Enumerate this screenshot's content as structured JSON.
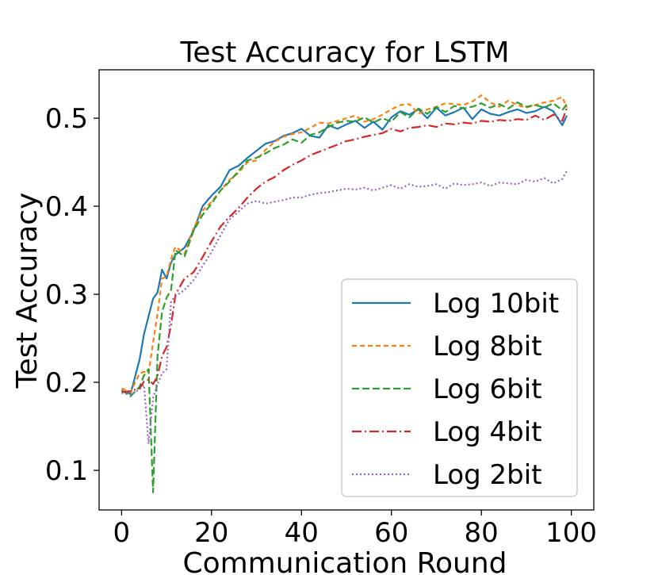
{
  "chart_data": {
    "type": "line",
    "title": "Test Accuracy for LSTM",
    "xlabel": "Communication Round",
    "ylabel": "Test Accuracy",
    "xlim": [
      -5,
      105
    ],
    "ylim": [
      0.055,
      0.555
    ],
    "xticks": [
      0,
      20,
      40,
      60,
      80,
      100
    ],
    "yticks": [
      0.1,
      0.2,
      0.3,
      0.4,
      0.5
    ],
    "xtick_labels": [
      "0",
      "20",
      "40",
      "60",
      "80",
      "100"
    ],
    "ytick_labels": [
      "0.1",
      "0.2",
      "0.3",
      "0.4",
      "0.5"
    ],
    "grid": false,
    "legend_position": "lower-right",
    "x": [
      0,
      2,
      4,
      5,
      6,
      7,
      8,
      9,
      10,
      11,
      12,
      14,
      16,
      18,
      20,
      22,
      24,
      26,
      28,
      30,
      32,
      34,
      36,
      38,
      40,
      42,
      44,
      46,
      48,
      50,
      52,
      54,
      56,
      58,
      60,
      62,
      64,
      66,
      68,
      70,
      72,
      74,
      76,
      78,
      80,
      82,
      84,
      86,
      88,
      90,
      92,
      94,
      96,
      98,
      99
    ],
    "series": [
      {
        "name": "Log 10bit",
        "color": "#1f77b4",
        "dash": "solid",
        "values": [
          0.19,
          0.187,
          0.226,
          0.255,
          0.275,
          0.295,
          0.302,
          0.328,
          0.318,
          0.336,
          0.345,
          0.353,
          0.372,
          0.4,
          0.412,
          0.422,
          0.441,
          0.446,
          0.455,
          0.463,
          0.471,
          0.474,
          0.48,
          0.483,
          0.488,
          0.48,
          0.478,
          0.492,
          0.488,
          0.493,
          0.497,
          0.489,
          0.496,
          0.487,
          0.501,
          0.508,
          0.504,
          0.51,
          0.5,
          0.512,
          0.503,
          0.507,
          0.512,
          0.499,
          0.51,
          0.505,
          0.503,
          0.507,
          0.51,
          0.506,
          0.508,
          0.513,
          0.508,
          0.492,
          0.503
        ]
      },
      {
        "name": "Log 8bit",
        "color": "#ff7f0e",
        "dash": "6,4",
        "values": [
          0.193,
          0.189,
          0.21,
          0.212,
          0.21,
          0.245,
          0.278,
          0.318,
          0.32,
          0.34,
          0.354,
          0.346,
          0.375,
          0.395,
          0.405,
          0.418,
          0.43,
          0.438,
          0.45,
          0.452,
          0.464,
          0.473,
          0.479,
          0.482,
          0.484,
          0.489,
          0.495,
          0.494,
          0.497,
          0.5,
          0.503,
          0.496,
          0.499,
          0.504,
          0.51,
          0.515,
          0.516,
          0.505,
          0.51,
          0.513,
          0.517,
          0.516,
          0.515,
          0.519,
          0.526,
          0.518,
          0.513,
          0.52,
          0.515,
          0.512,
          0.515,
          0.518,
          0.52,
          0.524,
          0.512
        ]
      },
      {
        "name": "Log 6bit",
        "color": "#2ca02c",
        "dash": "9,4",
        "values": [
          0.191,
          0.184,
          0.195,
          0.208,
          0.215,
          0.075,
          0.23,
          0.28,
          0.296,
          0.305,
          0.35,
          0.343,
          0.372,
          0.39,
          0.403,
          0.418,
          0.428,
          0.44,
          0.452,
          0.455,
          0.46,
          0.466,
          0.47,
          0.476,
          0.472,
          0.481,
          0.484,
          0.49,
          0.495,
          0.497,
          0.496,
          0.501,
          0.495,
          0.5,
          0.496,
          0.507,
          0.501,
          0.511,
          0.505,
          0.513,
          0.507,
          0.514,
          0.511,
          0.513,
          0.517,
          0.512,
          0.516,
          0.511,
          0.518,
          0.513,
          0.515,
          0.512,
          0.517,
          0.509,
          0.516
        ]
      },
      {
        "name": "Log 4bit",
        "color": "#d62728",
        "dash": "12,4,2,4",
        "values": [
          0.189,
          0.19,
          0.193,
          0.201,
          0.203,
          0.198,
          0.207,
          0.23,
          0.24,
          0.265,
          0.3,
          0.318,
          0.325,
          0.342,
          0.36,
          0.377,
          0.388,
          0.398,
          0.41,
          0.42,
          0.428,
          0.433,
          0.441,
          0.447,
          0.452,
          0.458,
          0.462,
          0.466,
          0.47,
          0.474,
          0.476,
          0.479,
          0.481,
          0.483,
          0.488,
          0.485,
          0.489,
          0.49,
          0.492,
          0.49,
          0.494,
          0.493,
          0.495,
          0.494,
          0.497,
          0.496,
          0.498,
          0.497,
          0.499,
          0.498,
          0.503,
          0.498,
          0.504,
          0.497,
          0.512
        ]
      },
      {
        "name": "Log 2bit",
        "color": "#9467bd",
        "dash": "2,3",
        "values": [
          0.188,
          0.186,
          0.192,
          0.197,
          0.13,
          0.182,
          0.198,
          0.21,
          0.215,
          0.292,
          0.298,
          0.305,
          0.316,
          0.332,
          0.348,
          0.367,
          0.385,
          0.394,
          0.403,
          0.406,
          0.403,
          0.405,
          0.407,
          0.41,
          0.41,
          0.413,
          0.415,
          0.416,
          0.418,
          0.42,
          0.419,
          0.421,
          0.418,
          0.421,
          0.424,
          0.42,
          0.425,
          0.422,
          0.423,
          0.425,
          0.42,
          0.426,
          0.424,
          0.425,
          0.427,
          0.423,
          0.427,
          0.426,
          0.425,
          0.43,
          0.428,
          0.432,
          0.426,
          0.431,
          0.44
        ]
      }
    ]
  }
}
